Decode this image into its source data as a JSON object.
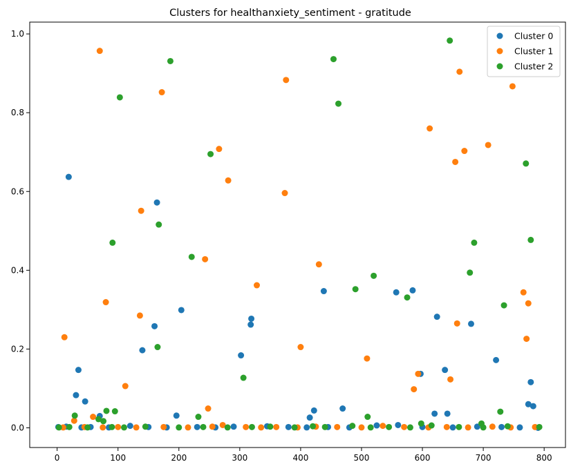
{
  "chart_data": {
    "type": "scatter",
    "title": "Clusters for healthanxiety_sentiment - gratitude",
    "xlabel": "",
    "ylabel": "",
    "xlim": [
      -45,
      835
    ],
    "ylim": [
      -0.05,
      1.03
    ],
    "xticks": [
      0,
      100,
      200,
      300,
      400,
      500,
      600,
      700,
      800
    ],
    "yticks": [
      0.0,
      0.2,
      0.4,
      0.6,
      0.8,
      1.0
    ],
    "ytick_labels": [
      "0.0",
      "0.2",
      "0.4",
      "0.6",
      "0.8",
      "1.0"
    ],
    "grid": false,
    "legend_position": "top-right",
    "series": [
      {
        "name": "Cluster 0",
        "color": "#1f77b4",
        "points": [
          [
            19,
            0.637
          ],
          [
            31,
            0.083
          ],
          [
            35,
            0.147
          ],
          [
            46,
            0.067
          ],
          [
            70,
            0.03
          ],
          [
            140,
            0.197
          ],
          [
            160,
            0.258
          ],
          [
            164,
            0.572
          ],
          [
            196,
            0.031
          ],
          [
            204,
            0.299
          ],
          [
            302,
            0.184
          ],
          [
            318,
            0.262
          ],
          [
            319,
            0.277
          ],
          [
            415,
            0.026
          ],
          [
            422,
            0.044
          ],
          [
            438,
            0.347
          ],
          [
            469,
            0.049
          ],
          [
            557,
            0.344
          ],
          [
            584,
            0.349
          ],
          [
            597,
            0.137
          ],
          [
            620,
            0.036
          ],
          [
            624,
            0.282
          ],
          [
            637,
            0.147
          ],
          [
            641,
            0.036
          ],
          [
            680,
            0.264
          ],
          [
            721,
            0.172
          ],
          [
            774,
            0.06
          ],
          [
            778,
            0.116
          ],
          [
            782,
            0.055
          ],
          [
            2,
            0.002
          ],
          [
            15,
            0.003
          ],
          [
            40,
            0.001
          ],
          [
            55,
            0.002
          ],
          [
            85,
            0.001
          ],
          [
            120,
            0.005
          ],
          [
            150,
            0.002
          ],
          [
            180,
            0.001
          ],
          [
            230,
            0.002
          ],
          [
            260,
            0.001
          ],
          [
            290,
            0.003
          ],
          [
            345,
            0.004
          ],
          [
            380,
            0.002
          ],
          [
            410,
            0.001
          ],
          [
            445,
            0.002
          ],
          [
            480,
            0.001
          ],
          [
            525,
            0.006
          ],
          [
            560,
            0.007
          ],
          [
            600,
            0.002
          ],
          [
            650,
            0.001
          ],
          [
            690,
            0.003
          ],
          [
            730,
            0.002
          ],
          [
            760,
            0.001
          ],
          [
            790,
            0.0
          ]
        ]
      },
      {
        "name": "Cluster 1",
        "color": "#ff7f0e",
        "points": [
          [
            12,
            0.23
          ],
          [
            28,
            0.018
          ],
          [
            59,
            0.028
          ],
          [
            70,
            0.957
          ],
          [
            80,
            0.319
          ],
          [
            112,
            0.106
          ],
          [
            136,
            0.285
          ],
          [
            138,
            0.551
          ],
          [
            172,
            0.852
          ],
          [
            243,
            0.428
          ],
          [
            248,
            0.049
          ],
          [
            266,
            0.708
          ],
          [
            281,
            0.628
          ],
          [
            328,
            0.362
          ],
          [
            374,
            0.596
          ],
          [
            376,
            0.883
          ],
          [
            400,
            0.205
          ],
          [
            430,
            0.415
          ],
          [
            509,
            0.176
          ],
          [
            586,
            0.098
          ],
          [
            593,
            0.137
          ],
          [
            612,
            0.76
          ],
          [
            646,
            0.123
          ],
          [
            654,
            0.675
          ],
          [
            657,
            0.265
          ],
          [
            661,
            0.904
          ],
          [
            669,
            0.703
          ],
          [
            708,
            0.718
          ],
          [
            748,
            0.867
          ],
          [
            766,
            0.344
          ],
          [
            771,
            0.226
          ],
          [
            774,
            0.316
          ],
          [
            10,
            0.001
          ],
          [
            45,
            0.002
          ],
          [
            75,
            0.001
          ],
          [
            100,
            0.002
          ],
          [
            130,
            0.001
          ],
          [
            175,
            0.002
          ],
          [
            215,
            0.001
          ],
          [
            255,
            0.003
          ],
          [
            272,
            0.007
          ],
          [
            310,
            0.002
          ],
          [
            335,
            0.001
          ],
          [
            360,
            0.002
          ],
          [
            395,
            0.001
          ],
          [
            425,
            0.003
          ],
          [
            460,
            0.002
          ],
          [
            500,
            0.001
          ],
          [
            535,
            0.005
          ],
          [
            570,
            0.002
          ],
          [
            610,
            0.001
          ],
          [
            640,
            0.002
          ],
          [
            675,
            0.001
          ],
          [
            715,
            0.003
          ],
          [
            745,
            0.001
          ],
          [
            785,
            0.002
          ]
        ]
      },
      {
        "name": "Cluster 2",
        "color": "#2ca02c",
        "points": [
          [
            29,
            0.031
          ],
          [
            68,
            0.022
          ],
          [
            76,
            0.017
          ],
          [
            81,
            0.043
          ],
          [
            91,
            0.47
          ],
          [
            95,
            0.042
          ],
          [
            103,
            0.839
          ],
          [
            165,
            0.205
          ],
          [
            167,
            0.516
          ],
          [
            186,
            0.931
          ],
          [
            221,
            0.434
          ],
          [
            232,
            0.028
          ],
          [
            252,
            0.695
          ],
          [
            306,
            0.127
          ],
          [
            454,
            0.936
          ],
          [
            462,
            0.823
          ],
          [
            490,
            0.352
          ],
          [
            510,
            0.028
          ],
          [
            520,
            0.386
          ],
          [
            575,
            0.331
          ],
          [
            598,
            0.011
          ],
          [
            645,
            0.983
          ],
          [
            678,
            0.394
          ],
          [
            685,
            0.47
          ],
          [
            697,
            0.011
          ],
          [
            728,
            0.041
          ],
          [
            734,
            0.311
          ],
          [
            770,
            0.671
          ],
          [
            778,
            0.477
          ],
          [
            3,
            0.001
          ],
          [
            20,
            0.002
          ],
          [
            50,
            0.001
          ],
          [
            90,
            0.002
          ],
          [
            110,
            0.001
          ],
          [
            145,
            0.003
          ],
          [
            200,
            0.001
          ],
          [
            240,
            0.002
          ],
          [
            280,
            0.001
          ],
          [
            320,
            0.002
          ],
          [
            350,
            0.003
          ],
          [
            390,
            0.001
          ],
          [
            420,
            0.004
          ],
          [
            440,
            0.002
          ],
          [
            485,
            0.005
          ],
          [
            515,
            0.001
          ],
          [
            545,
            0.002
          ],
          [
            580,
            0.001
          ],
          [
            615,
            0.006
          ],
          [
            660,
            0.002
          ],
          [
            700,
            0.001
          ],
          [
            740,
            0.004
          ],
          [
            792,
            0.002
          ]
        ]
      }
    ]
  }
}
